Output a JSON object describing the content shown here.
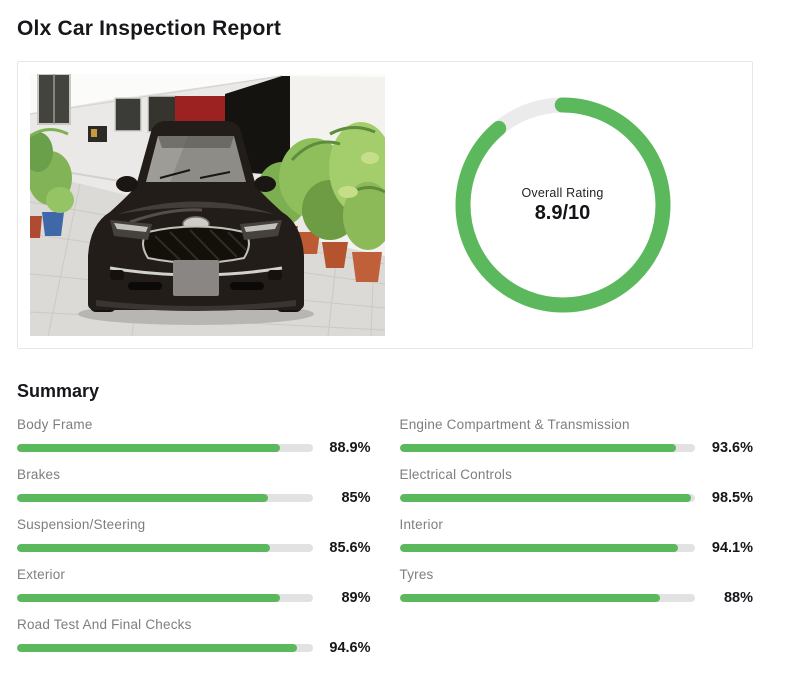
{
  "page": {
    "title": "Olx Car Inspection Report"
  },
  "colors": {
    "accent_green": "#5cb85c",
    "bar_track": "#e2e2e2",
    "donut_track": "#ebebeb",
    "label_gray": "#7e7e7e",
    "text_dark": "#15171a",
    "card_border": "#e7e7e7"
  },
  "overview_card": {
    "photo": {
      "alt": "Front view of a dark KIA SUV parked in a covered driveway with potted plants, a red wall panel and grey tiled floor; license plate blurred"
    },
    "donut": {
      "label": "Overall Rating",
      "value": 8.9,
      "max": 10,
      "display": "8.9/10"
    }
  },
  "summary": {
    "heading": "Summary",
    "left": [
      {
        "label": "Body Frame",
        "value": 88.9,
        "pct": "88.9%"
      },
      {
        "label": "Brakes",
        "value": 85,
        "pct": "85%"
      },
      {
        "label": "Suspension/Steering",
        "value": 85.6,
        "pct": "85.6%"
      },
      {
        "label": "Exterior",
        "value": 89,
        "pct": "89%"
      },
      {
        "label": "Road Test And Final Checks",
        "value": 94.6,
        "pct": "94.6%"
      }
    ],
    "right": [
      {
        "label": "Engine Compartment & Transmission",
        "value": 93.6,
        "pct": "93.6%"
      },
      {
        "label": "Electrical Controls",
        "value": 98.5,
        "pct": "98.5%"
      },
      {
        "label": "Interior",
        "value": 94.1,
        "pct": "94.1%"
      },
      {
        "label": "Tyres",
        "value": 88,
        "pct": "88%"
      }
    ]
  },
  "chart_data": [
    {
      "type": "pie",
      "subtype": "donut",
      "title": "Overall Rating",
      "center_label": "Overall Rating",
      "center_value": "8.9/10",
      "labels": [
        "rating",
        "remaining"
      ],
      "values": [
        8.9,
        1.1
      ],
      "max": 10,
      "colors": [
        "#5cb85c",
        "#ebebeb"
      ],
      "start_angle_deg": 0,
      "direction": "clockwise"
    },
    {
      "type": "bar",
      "orientation": "horizontal",
      "title": "Summary",
      "categories": [
        "Body Frame",
        "Brakes",
        "Suspension/Steering",
        "Exterior",
        "Road Test And Final Checks",
        "Engine Compartment & Transmission",
        "Electrical Controls",
        "Interior",
        "Tyres"
      ],
      "values": [
        88.9,
        85,
        85.6,
        89,
        94.6,
        93.6,
        98.5,
        94.1,
        88
      ],
      "unit": "%",
      "xlim": [
        0,
        100
      ],
      "bar_color": "#5cb85c",
      "track_color": "#e2e2e2",
      "grid": false,
      "legend": false
    }
  ]
}
